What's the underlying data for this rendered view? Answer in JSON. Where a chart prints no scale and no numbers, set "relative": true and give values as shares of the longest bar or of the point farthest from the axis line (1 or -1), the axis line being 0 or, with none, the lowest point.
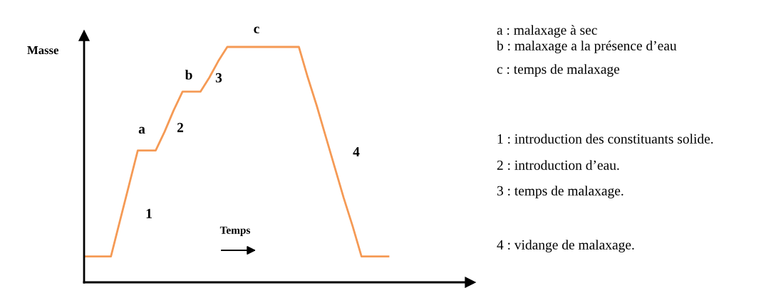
{
  "chart_data": {
    "type": "line",
    "relative": true,
    "color": "#f59a55",
    "ylabel": "Masse",
    "xlabel": "Temps",
    "categories": [
      null,
      null,
      null,
      null,
      null,
      null,
      null,
      null,
      null,
      null,
      null,
      null,
      null,
      null,
      null,
      null,
      null,
      null,
      null,
      null,
      null,
      null,
      null,
      null,
      null,
      null,
      null,
      null,
      null,
      null,
      null,
      null,
      null,
      null,
      null
    ],
    "values": [
      0.11,
      0.11,
      0.11,
      0.11,
      0.26,
      0.41,
      0.56,
      0.56,
      0.56,
      0.64,
      0.73,
      0.81,
      0.81,
      0.81,
      0.87,
      0.94,
      1,
      1,
      1,
      1,
      1,
      1,
      1,
      1,
      1,
      0.87,
      0.75,
      0.62,
      0.49,
      0.36,
      0.24,
      0.11,
      0.11,
      0.11,
      0.11
    ],
    "annotations": [
      "a",
      "b",
      "c",
      "1",
      "2",
      "3",
      "4",
      "a : malaxage à sec",
      "b : malaxage a la présence d’eau",
      "c : temps de malaxage",
      "1 : introduction des constituants solide.",
      "2 : introduction d’eau.",
      "3 : temps de malaxage.",
      "4 : vidange de malaxage."
    ],
    "marker": "none",
    "line_style": "solid"
  }
}
